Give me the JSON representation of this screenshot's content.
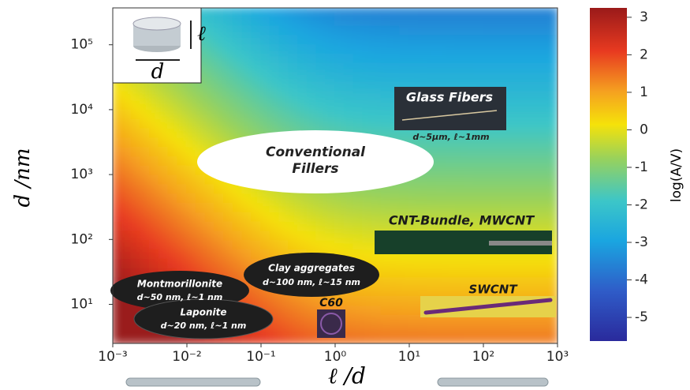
{
  "chart_data": {
    "type": "heatmap",
    "xlabel": "ℓ /d",
    "ylabel": "d /nm",
    "colorbar_label": "log(A/V)",
    "xscale": "log",
    "yscale": "log",
    "xlim": [
      0.001,
      1000
    ],
    "xticks": [
      {
        "value": 0.001,
        "label": "10⁻³"
      },
      {
        "value": 0.01,
        "label": "10⁻²"
      },
      {
        "value": 0.1,
        "label": "10⁻¹"
      },
      {
        "value": 1,
        "label": "10⁰"
      },
      {
        "value": 10,
        "label": "10¹"
      },
      {
        "value": 100,
        "label": "10²"
      },
      {
        "value": 1000,
        "label": "10³"
      }
    ],
    "ylim": [
      2.5,
      370000
    ],
    "yticks": [
      {
        "value": 10,
        "label": "10¹"
      },
      {
        "value": 100,
        "label": "10²"
      },
      {
        "value": 1000,
        "label": "10³"
      },
      {
        "value": 10000,
        "label": "10⁴"
      },
      {
        "value": 100000,
        "label": "10⁵"
      }
    ],
    "clim": [
      -5.63,
      3.25
    ],
    "cticks": [
      3,
      2,
      1,
      0,
      -1,
      -2,
      -3,
      -4,
      -5
    ],
    "inset_labels": [
      "ℓ",
      "d"
    ],
    "annotations": [
      "Glass Fibers",
      "d~5μm, ℓ~1mm",
      "Conventional",
      "Fillers",
      "CNT-Bundle, MWCNT",
      "SWCNT",
      "Clay aggregates",
      "d~100 nm, ℓ~15 nm",
      "Montmorillonite",
      "d~50 nm, ℓ~1 nm",
      "Laponite",
      "d~20 nm, ℓ~1 nm",
      "C60"
    ]
  }
}
